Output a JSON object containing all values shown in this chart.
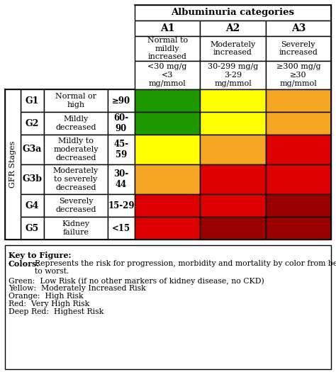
{
  "title": "Albuminuria categories",
  "col_headers": [
    "A1",
    "A2",
    "A3"
  ],
  "col_sub1": [
    "Normal to\nmildly\nincreased",
    "Moderately\nincreased",
    "Severely\nincreased"
  ],
  "col_sub2": [
    "<30 mg/g\n<3\nmg/mmol",
    "30-299 mg/g\n3-29\nmg/mmol",
    "≥300 mg/g\n≥30\nmg/mmol"
  ],
  "row_labels": [
    "G1",
    "G2",
    "G3a",
    "G3b",
    "G4",
    "G5"
  ],
  "row_desc": [
    "Normal or\nhigh",
    "Mildly\ndecreased",
    "Mildly to\nmoderately\ndecreased",
    "Moderately\nto severely\ndecreased",
    "Severely\ndecreased",
    "Kidney\nfailure"
  ],
  "row_vals": [
    "≥90",
    "60-\n90",
    "45-\n59",
    "30-\n44",
    "15-29",
    "<15"
  ],
  "gfr_label": "GFR Stages",
  "cell_colors": [
    [
      "#1e9900",
      "#ffff00",
      "#f5a623"
    ],
    [
      "#1e9900",
      "#ffff00",
      "#f5a623"
    ],
    [
      "#ffff00",
      "#f5a623",
      "#dd0000"
    ],
    [
      "#f5a623",
      "#dd0000",
      "#dd0000"
    ],
    [
      "#dd0000",
      "#dd0000",
      "#9b0000"
    ],
    [
      "#dd0000",
      "#9b0000",
      "#9b0000"
    ]
  ],
  "border_color": "#000000",
  "bg_color": "#ffffff",
  "key_title": "Key to Figure:",
  "key_colors_label": "Colors:",
  "key_colors_text": "Represents the risk for progression, morbidity and mortality by color from best\nto worst.",
  "key_lines": [
    "Green:  Low Risk (if no other markers of kidney disease, no CKD)",
    "Yellow:  Moderately Increased Risk",
    "Orange:  High Risk",
    "Red:  Very High Risk",
    "Deep Red:  Highest Risk"
  ]
}
